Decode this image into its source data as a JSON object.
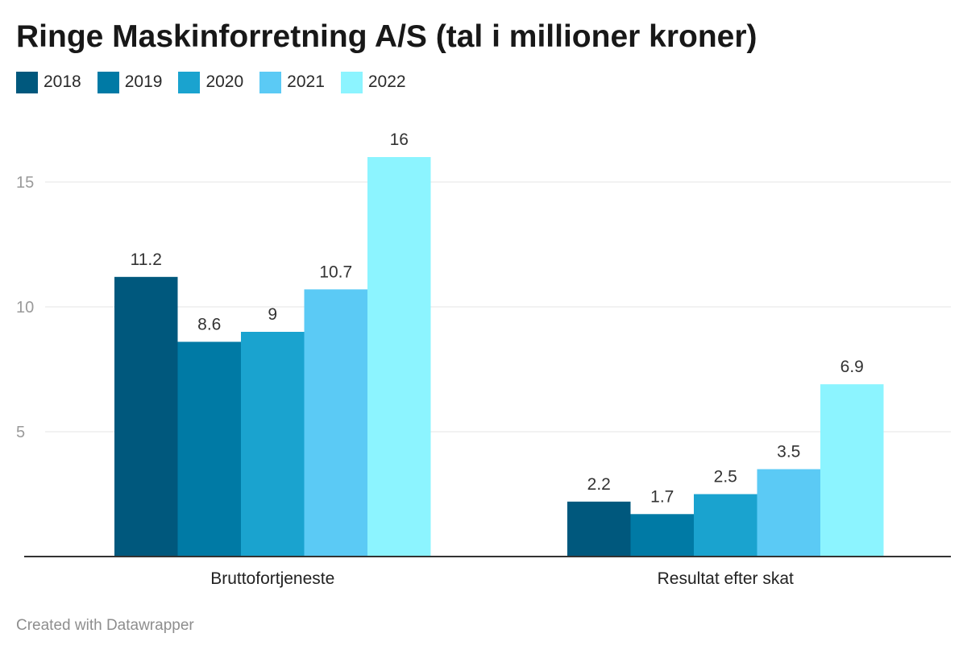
{
  "title": "Ringe Maskinforretning A/S (tal i millioner kroner)",
  "footer": "Created with Datawrapper",
  "colors": {
    "2018": "#00587d",
    "2019": "#007aa5",
    "2020": "#1aa3cf",
    "2021": "#5bcaf5",
    "2022": "#8cf4ff",
    "gridline": "#e5e5e5",
    "axis": "#333333",
    "tick_label": "#9a9a9a",
    "value_label": "#333333"
  },
  "chart_data": {
    "type": "bar",
    "title": "Ringe Maskinforretning A/S (tal i millioner kroner)",
    "categories": [
      "Bruttofortjeneste",
      "Resultat efter skat"
    ],
    "series": [
      {
        "name": "2018",
        "values": [
          11.2,
          2.2
        ],
        "labels": [
          "11.2",
          "2.2"
        ]
      },
      {
        "name": "2019",
        "values": [
          8.6,
          1.7
        ],
        "labels": [
          "8.6",
          "1.7"
        ]
      },
      {
        "name": "2020",
        "values": [
          9,
          2.5
        ],
        "labels": [
          "9",
          "2.5"
        ]
      },
      {
        "name": "2021",
        "values": [
          10.7,
          3.5
        ],
        "labels": [
          "10.7",
          "3.5"
        ]
      },
      {
        "name": "2022",
        "values": [
          16,
          6.9
        ],
        "labels": [
          "16",
          "6.9"
        ]
      }
    ],
    "ylim": [
      0,
      17
    ],
    "yticks": [
      5,
      10,
      15
    ],
    "ytick_labels": [
      "5",
      "10",
      "15"
    ],
    "grid": true,
    "legend": "top-left",
    "xlabel": "",
    "ylabel": ""
  }
}
